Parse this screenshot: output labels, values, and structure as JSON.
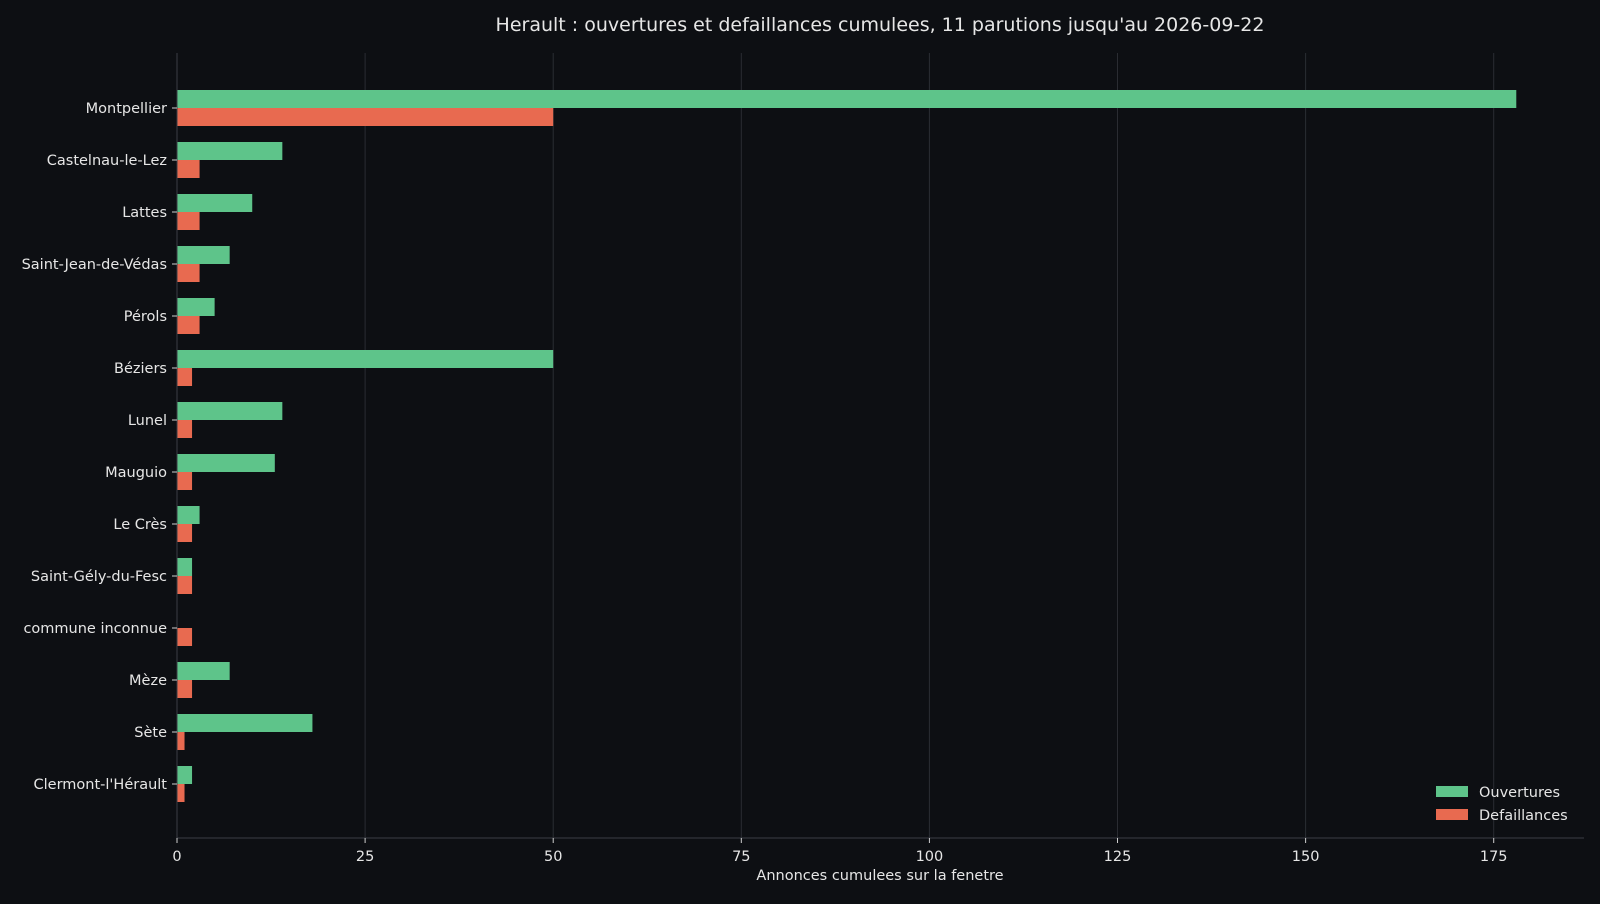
{
  "chart_data": {
    "type": "bar",
    "orientation": "horizontal",
    "title": "Herault : ouvertures et defaillances cumulees, 11 parutions jusqu'au 2026-09-22",
    "xlabel": "Annonces cumulees sur la fenetre",
    "ylabel": "",
    "xlim": [
      0,
      187
    ],
    "xticks": [
      0,
      25,
      50,
      75,
      100,
      125,
      150,
      175
    ],
    "grid": "vertical",
    "legend_position": "bottom-right",
    "categories": [
      "Montpellier",
      "Castelnau-le-Lez",
      "Lattes",
      "Saint-Jean-de-Védas",
      "Pérols",
      "Béziers",
      "Lunel",
      "Mauguio",
      "Le Crès",
      "Saint-Gély-du-Fesc",
      "commune inconnue",
      "Mèze",
      "Sète",
      "Clermont-l'Hérault"
    ],
    "series": [
      {
        "name": "Ouvertures",
        "color": "#5ec48a",
        "values": [
          178,
          14,
          10,
          7,
          5,
          50,
          14,
          13,
          3,
          2,
          0,
          7,
          18,
          2
        ]
      },
      {
        "name": "Defaillances",
        "color": "#e86a50",
        "values": [
          50,
          3,
          3,
          3,
          3,
          2,
          2,
          2,
          2,
          2,
          2,
          2,
          1,
          1
        ]
      }
    ]
  }
}
